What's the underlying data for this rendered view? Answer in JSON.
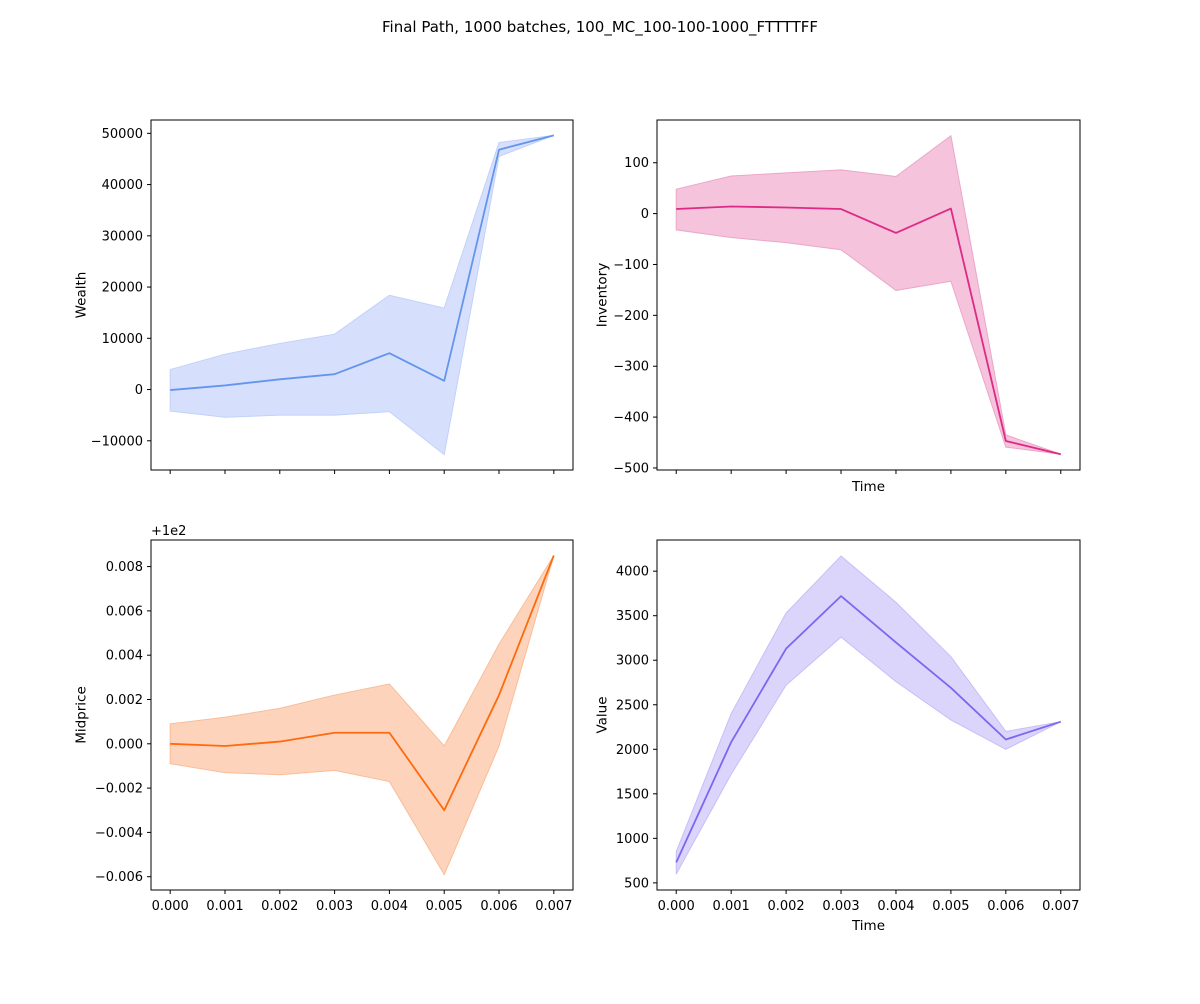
{
  "figure": {
    "suptitle": "Final Path, 1000 batches, 100_MC_100-100-1000_FTTTTFF"
  },
  "chart_data": [
    {
      "type": "line",
      "name": "wealth",
      "title": "",
      "xlabel": "",
      "ylabel": "Wealth",
      "x": [
        0.0,
        0.001,
        0.002,
        0.003,
        0.004,
        0.005,
        0.006,
        0.007
      ],
      "series": [
        {
          "values": [
            -100,
            800,
            2000,
            3000,
            7100,
            1700,
            46800,
            49600
          ],
          "lower": [
            -4200,
            -5400,
            -5000,
            -5000,
            -4300,
            -12700,
            45500,
            49600
          ],
          "upper": [
            3900,
            6900,
            9000,
            10800,
            18400,
            15900,
            48200,
            49600
          ],
          "color": "#6495ed",
          "band_color": "#d6e0fc",
          "band_edge": "#c2d1f9"
        }
      ],
      "xlim": [
        -0.00035,
        0.00735
      ],
      "ylim": [
        -15700,
        52600
      ],
      "yticks": [
        -10000,
        0,
        10000,
        20000,
        30000,
        40000,
        50000
      ],
      "xticks": [
        0.0,
        0.001,
        0.002,
        0.003,
        0.004,
        0.005,
        0.006,
        0.007
      ],
      "show_xtick_labels": false,
      "y_offset_label": "",
      "grid": false
    },
    {
      "type": "line",
      "name": "inventory",
      "title": "",
      "xlabel": "Time",
      "ylabel": "Inventory",
      "x": [
        0.0,
        0.001,
        0.002,
        0.003,
        0.004,
        0.005,
        0.006,
        0.007
      ],
      "series": [
        {
          "values": [
            9,
            14,
            12,
            9,
            -38,
            10,
            -447,
            -473
          ],
          "lower": [
            -32,
            -47,
            -57,
            -71,
            -151,
            -133,
            -459,
            -473
          ],
          "upper": [
            48,
            74,
            80,
            86,
            73,
            153,
            -435,
            -473
          ],
          "color": "#dd2a85",
          "band_color": "#f5c3dc",
          "band_edge": "#eba6c9"
        }
      ],
      "xlim": [
        -0.00035,
        0.00735
      ],
      "ylim": [
        -504,
        184
      ],
      "yticks": [
        -500,
        -400,
        -300,
        -200,
        -100,
        0,
        100
      ],
      "xticks": [
        0.0,
        0.001,
        0.002,
        0.003,
        0.004,
        0.005,
        0.006,
        0.007
      ],
      "show_xtick_labels": false,
      "y_offset_label": "",
      "grid": false
    },
    {
      "type": "line",
      "name": "midprice",
      "title": "",
      "xlabel": "",
      "ylabel": "Midprice",
      "x": [
        0.0,
        0.001,
        0.002,
        0.003,
        0.004,
        0.005,
        0.006,
        0.007
      ],
      "series": [
        {
          "values": [
            0.0,
            -0.0001,
            0.0001,
            0.0005,
            0.0005,
            -0.003,
            0.0022,
            0.0085
          ],
          "lower": [
            -0.0009,
            -0.0013,
            -0.0014,
            -0.0012,
            -0.0017,
            -0.0059,
            -0.0001,
            0.0085
          ],
          "upper": [
            0.0009,
            0.0012,
            0.0016,
            0.0022,
            0.0027,
            -0.0001,
            0.0045,
            0.0085
          ],
          "color": "#ff6a0e",
          "band_color": "#fdd4bb",
          "band_edge": "#f9bd98"
        }
      ],
      "xlim": [
        -0.00035,
        0.00735
      ],
      "ylim": [
        -0.0066,
        0.0092
      ],
      "yticks": [
        -0.006,
        -0.004,
        -0.002,
        0.0,
        0.002,
        0.004,
        0.006,
        0.008
      ],
      "xticks": [
        0.0,
        0.001,
        0.002,
        0.003,
        0.004,
        0.005,
        0.006,
        0.007
      ],
      "show_xtick_labels": true,
      "y_offset_label": "+1e2",
      "grid": false
    },
    {
      "type": "line",
      "name": "value",
      "title": "",
      "xlabel": "Time",
      "ylabel": "Value",
      "x": [
        0.0,
        0.001,
        0.002,
        0.003,
        0.004,
        0.005,
        0.006,
        0.007
      ],
      "series": [
        {
          "values": [
            730,
            2080,
            3130,
            3720,
            3200,
            2690,
            2110,
            2310
          ],
          "lower": [
            600,
            1720,
            2720,
            3260,
            2760,
            2330,
            2000,
            2310
          ],
          "upper": [
            850,
            2400,
            3530,
            4170,
            3650,
            3040,
            2200,
            2310
          ],
          "color": "#7b68ee",
          "band_color": "#dbd5fb",
          "band_edge": "#c7bef8"
        }
      ],
      "xlim": [
        -0.00035,
        0.00735
      ],
      "ylim": [
        420,
        4350
      ],
      "yticks": [
        500,
        1000,
        1500,
        2000,
        2500,
        3000,
        3500,
        4000
      ],
      "xticks": [
        0.0,
        0.001,
        0.002,
        0.003,
        0.004,
        0.005,
        0.006,
        0.007
      ],
      "show_xtick_labels": true,
      "y_offset_label": "",
      "grid": false
    }
  ]
}
